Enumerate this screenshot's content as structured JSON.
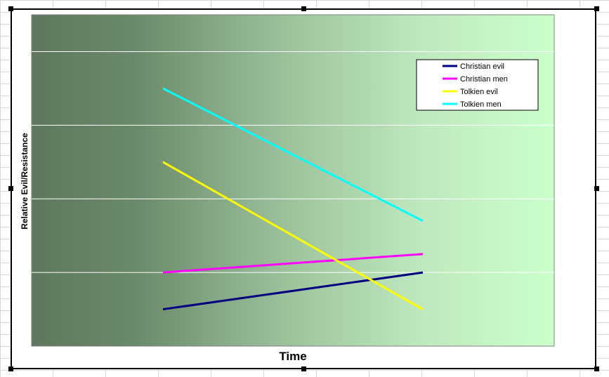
{
  "chart_data": {
    "type": "line",
    "title": "",
    "xlabel": "Time",
    "ylabel": "Relative Evil/Resistance",
    "x": [
      1,
      2
    ],
    "ylim": [
      0,
      9
    ],
    "grid": true,
    "legend_position": "top-right",
    "series": [
      {
        "name": "Christian evil",
        "color": "#00007f",
        "values": [
          1,
          2
        ]
      },
      {
        "name": "Christian men",
        "color": "#ff00ff",
        "values": [
          2,
          2.5
        ]
      },
      {
        "name": "Tolkien evil",
        "color": "#ffff00",
        "values": [
          5,
          1
        ]
      },
      {
        "name": "Tolkien men",
        "color": "#00ffff",
        "values": [
          7,
          3.4
        ]
      }
    ]
  }
}
